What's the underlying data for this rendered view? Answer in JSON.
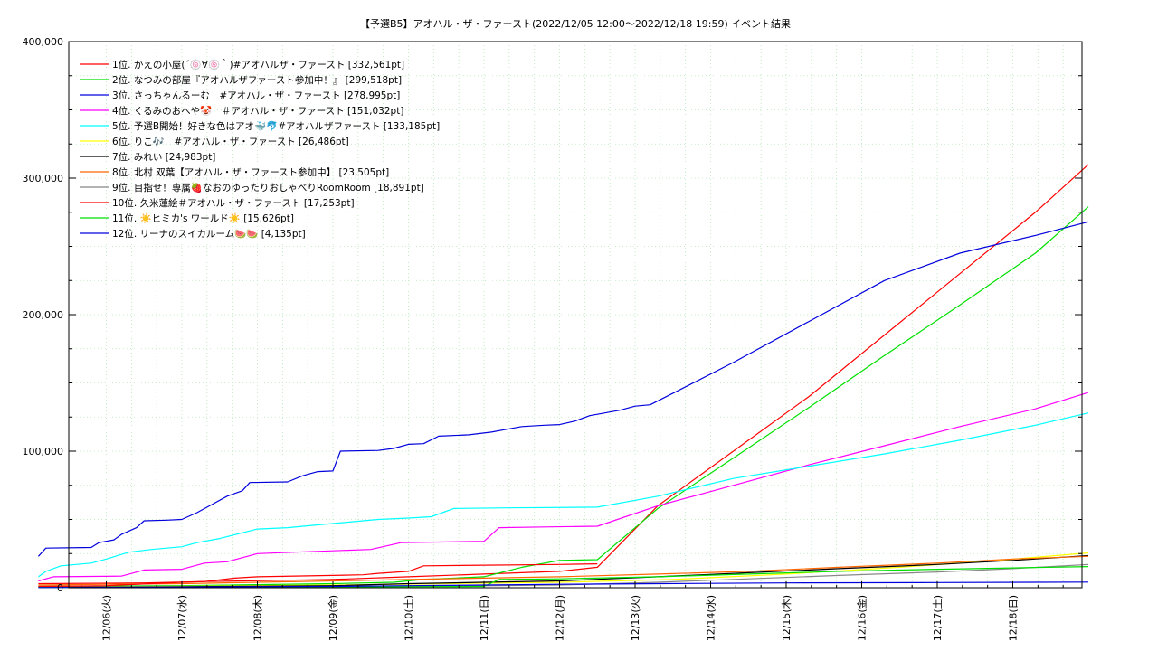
{
  "chart_data": {
    "type": "line",
    "title": "【予選B5】アオハル・ザ・ファースト(2022/12/05 12:00〜2022/12/18 19:59)",
    "subtitle": "イベント結果",
    "xlabel": "",
    "ylabel": "",
    "ylim": [
      0,
      400000
    ],
    "y_ticks": [
      "0",
      "100,000",
      "200,000",
      "300,000",
      "400,000"
    ],
    "x_ticks": [
      {
        "day": 1,
        "label": "12/06(火)"
      },
      {
        "day": 2,
        "label": "12/07(水)"
      },
      {
        "day": 3,
        "label": "12/08(木)"
      },
      {
        "day": 4,
        "label": "12/09(金)"
      },
      {
        "day": 5,
        "label": "12/10(土)"
      },
      {
        "day": 6,
        "label": "12/11(日)"
      },
      {
        "day": 7,
        "label": "12/12(月)"
      },
      {
        "day": 8,
        "label": "12/13(火)"
      },
      {
        "day": 9,
        "label": "12/14(水)"
      },
      {
        "day": 10,
        "label": "12/15(木)"
      },
      {
        "day": 11,
        "label": "12/16(金)"
      },
      {
        "day": 12,
        "label": "12/17(土)"
      },
      {
        "day": 13,
        "label": "12/18(日)"
      }
    ],
    "grid": true,
    "legend_position": "top-left",
    "series": [
      {
        "name": "1位. かえの小屋(´🍥∀🍥｀)#アオハルザ・ファースト [332,561pt]",
        "color": "#ff0000",
        "points": [
          [
            0.1,
            3000
          ],
          [
            1.5,
            3500
          ],
          [
            2.3,
            4500
          ],
          [
            3.4,
            5500
          ],
          [
            4.0,
            6000
          ],
          [
            5.0,
            8000
          ],
          [
            6.0,
            10000
          ],
          [
            7.0,
            12000
          ],
          [
            7.5,
            15000
          ],
          [
            8.3,
            60000
          ],
          [
            9.3,
            100000
          ],
          [
            10.3,
            140000
          ],
          [
            11.3,
            185000
          ],
          [
            12.3,
            230000
          ],
          [
            13.3,
            275000
          ],
          [
            14.0,
            310000
          ]
        ]
      },
      {
        "name": "2位. なつみの部屋『アオハルザファースト参加中！』 [299,518pt]",
        "color": "#00e000",
        "points": [
          [
            0.1,
            1000
          ],
          [
            2.0,
            1500
          ],
          [
            4.0,
            3000
          ],
          [
            4.8,
            4000
          ],
          [
            5.2,
            6000
          ],
          [
            6.0,
            8000
          ],
          [
            6.5,
            15000
          ],
          [
            7.0,
            20000
          ],
          [
            7.5,
            20500
          ],
          [
            8.3,
            58000
          ],
          [
            9.3,
            95000
          ],
          [
            10.3,
            132000
          ],
          [
            11.3,
            170000
          ],
          [
            12.3,
            207000
          ],
          [
            13.3,
            245000
          ],
          [
            14.0,
            279000
          ]
        ]
      },
      {
        "name": "3位. さっちゃんるーむ　#アオハル・ザ・ファースト [278,995pt]",
        "color": "#0000dd",
        "points": [
          [
            0.1,
            23000
          ],
          [
            0.2,
            29000
          ],
          [
            0.8,
            29500
          ],
          [
            0.9,
            33000
          ],
          [
            1.1,
            35000
          ],
          [
            1.2,
            39000
          ],
          [
            1.4,
            44000
          ],
          [
            1.5,
            49000
          ],
          [
            1.8,
            49500
          ],
          [
            2.0,
            50000
          ],
          [
            2.2,
            55000
          ],
          [
            2.4,
            61000
          ],
          [
            2.6,
            67000
          ],
          [
            2.8,
            71000
          ],
          [
            2.9,
            77000
          ],
          [
            3.4,
            77500
          ],
          [
            3.6,
            82000
          ],
          [
            3.8,
            85000
          ],
          [
            4.0,
            85500
          ],
          [
            4.1,
            100000
          ],
          [
            4.6,
            100500
          ],
          [
            4.8,
            102000
          ],
          [
            5.0,
            105000
          ],
          [
            5.2,
            105500
          ],
          [
            5.4,
            111000
          ],
          [
            5.8,
            112000
          ],
          [
            6.1,
            114000
          ],
          [
            6.3,
            116000
          ],
          [
            6.5,
            118000
          ],
          [
            6.8,
            119000
          ],
          [
            7.0,
            119500
          ],
          [
            7.2,
            122000
          ],
          [
            7.4,
            126000
          ],
          [
            7.6,
            128000
          ],
          [
            7.8,
            130000
          ],
          [
            8.0,
            133000
          ],
          [
            8.2,
            134000
          ],
          [
            9.3,
            165000
          ],
          [
            10.3,
            195000
          ],
          [
            11.3,
            225000
          ],
          [
            12.3,
            245000
          ],
          [
            13.3,
            258000
          ],
          [
            14.0,
            268000
          ]
        ]
      },
      {
        "name": "4位. くるみのおへや🤡　＃アオハル・ザ・ファースト [151,032pt]",
        "color": "#ff00ff",
        "points": [
          [
            0.1,
            5000
          ],
          [
            0.3,
            8000
          ],
          [
            1.2,
            8500
          ],
          [
            1.5,
            13000
          ],
          [
            2.0,
            13500
          ],
          [
            2.3,
            18000
          ],
          [
            2.6,
            19000
          ],
          [
            3.0,
            25000
          ],
          [
            3.5,
            26000
          ],
          [
            4.0,
            27000
          ],
          [
            4.5,
            28000
          ],
          [
            4.9,
            33000
          ],
          [
            5.5,
            33500
          ],
          [
            6.0,
            34000
          ],
          [
            6.2,
            44000
          ],
          [
            6.8,
            44500
          ],
          [
            7.5,
            45000
          ],
          [
            8.3,
            60000
          ],
          [
            9.3,
            75000
          ],
          [
            10.3,
            90000
          ],
          [
            11.3,
            104000
          ],
          [
            12.3,
            118000
          ],
          [
            13.3,
            131000
          ],
          [
            14.0,
            143000
          ]
        ]
      },
      {
        "name": "5位. 予選B開始！好きな色はアオ🐳🐬#アオハルザファースト [133,185pt]",
        "color": "#00ffff",
        "points": [
          [
            0.1,
            8000
          ],
          [
            0.2,
            12000
          ],
          [
            0.4,
            16000
          ],
          [
            0.8,
            18000
          ],
          [
            1.0,
            21000
          ],
          [
            1.3,
            26000
          ],
          [
            1.6,
            28000
          ],
          [
            2.0,
            30000
          ],
          [
            2.2,
            33000
          ],
          [
            2.5,
            36000
          ],
          [
            3.0,
            43000
          ],
          [
            3.4,
            44000
          ],
          [
            3.8,
            46000
          ],
          [
            4.2,
            48000
          ],
          [
            4.6,
            50000
          ],
          [
            5.0,
            51000
          ],
          [
            5.3,
            52000
          ],
          [
            5.6,
            58000
          ],
          [
            6.3,
            58500
          ],
          [
            7.5,
            59000
          ],
          [
            8.3,
            67000
          ],
          [
            9.3,
            80000
          ],
          [
            10.3,
            89000
          ],
          [
            11.3,
            98000
          ],
          [
            12.3,
            108000
          ],
          [
            13.3,
            119000
          ],
          [
            14.0,
            128000
          ]
        ]
      },
      {
        "name": "6位. りこ🎶　#アオハル・ザ・ファースト [26,486pt]",
        "color": "#ffff00",
        "points": [
          [
            0.1,
            500
          ],
          [
            2.0,
            1000
          ],
          [
            4.0,
            2000
          ],
          [
            5.5,
            3000
          ],
          [
            7.0,
            4000
          ],
          [
            8.5,
            6000
          ],
          [
            10.0,
            10000
          ],
          [
            11.5,
            15000
          ],
          [
            12.8,
            20000
          ],
          [
            14.0,
            25500
          ]
        ]
      },
      {
        "name": "7位. みれい [24,983pt]",
        "color": "#000000",
        "points": [
          [
            0.1,
            400
          ],
          [
            2.0,
            700
          ],
          [
            4.0,
            1500
          ],
          [
            5.0,
            3000
          ],
          [
            6.0,
            4000
          ],
          [
            7.0,
            5000
          ],
          [
            8.3,
            8000
          ],
          [
            9.5,
            11000
          ],
          [
            10.7,
            14000
          ],
          [
            12.0,
            17000
          ],
          [
            13.0,
            20000
          ],
          [
            14.0,
            23500
          ]
        ]
      },
      {
        "name": "8位. 北村 双葉【アオハル・ザ・ファースト参加中】 [23,505pt]",
        "color": "#ff6600",
        "points": [
          [
            0.1,
            2000
          ],
          [
            1.0,
            2500
          ],
          [
            2.0,
            3000
          ],
          [
            3.0,
            4000
          ],
          [
            4.0,
            5000
          ],
          [
            5.0,
            6000
          ],
          [
            6.0,
            7000
          ],
          [
            7.0,
            8000
          ],
          [
            8.3,
            10000
          ],
          [
            9.5,
            12000
          ],
          [
            10.7,
            15000
          ],
          [
            12.0,
            18000
          ],
          [
            13.0,
            21000
          ],
          [
            14.0,
            23000
          ]
        ]
      },
      {
        "name": "9位. 目指せ！専属🍓なおのゆったりおしゃべりRoomRoom [18,891pt]",
        "color": "#888888",
        "points": [
          [
            0.1,
            300
          ],
          [
            3.0,
            500
          ],
          [
            5.0,
            1000
          ],
          [
            7.0,
            2000
          ],
          [
            8.3,
            4000
          ],
          [
            9.5,
            6500
          ],
          [
            10.7,
            9000
          ],
          [
            12.0,
            11500
          ],
          [
            13.0,
            14000
          ],
          [
            14.0,
            17000
          ]
        ]
      },
      {
        "name": "10位. 久米蓮絵＃アオハル・ザ・ファースト [17,253pt]",
        "color": "#ff0000",
        "points": [
          [
            0.1,
            1000
          ],
          [
            1.0,
            1500
          ],
          [
            2.0,
            4000
          ],
          [
            2.3,
            4500
          ],
          [
            2.7,
            7000
          ],
          [
            3.0,
            8000
          ],
          [
            4.0,
            9000
          ],
          [
            4.4,
            9500
          ],
          [
            4.6,
            10500
          ],
          [
            5.0,
            12000
          ],
          [
            5.2,
            16000
          ],
          [
            6.0,
            16500
          ],
          [
            7.0,
            17000
          ],
          [
            7.5,
            17500
          ]
        ]
      },
      {
        "name": "11位. ☀️ヒミカ's ワールド☀️ [15,626pt]",
        "color": "#00e000",
        "points": [
          [
            0.1,
            200
          ],
          [
            3.0,
            400
          ],
          [
            5.0,
            800
          ],
          [
            6.0,
            1000
          ],
          [
            6.2,
            6000
          ],
          [
            7.0,
            6500
          ],
          [
            8.3,
            8000
          ],
          [
            9.5,
            10000
          ],
          [
            10.7,
            12000
          ],
          [
            12.0,
            13500
          ],
          [
            13.0,
            14500
          ],
          [
            14.0,
            15500
          ]
        ]
      },
      {
        "name": "12位. リーナのスイカルーム🍉🍉 [4,135pt]",
        "color": "#0000dd",
        "points": [
          [
            0.1,
            100
          ],
          [
            4.0,
            1000
          ],
          [
            5.0,
            1500
          ],
          [
            6.0,
            2000
          ],
          [
            7.0,
            2500
          ],
          [
            8.3,
            3000
          ],
          [
            10.0,
            3500
          ],
          [
            12.0,
            3800
          ],
          [
            14.0,
            4100
          ]
        ]
      }
    ]
  }
}
